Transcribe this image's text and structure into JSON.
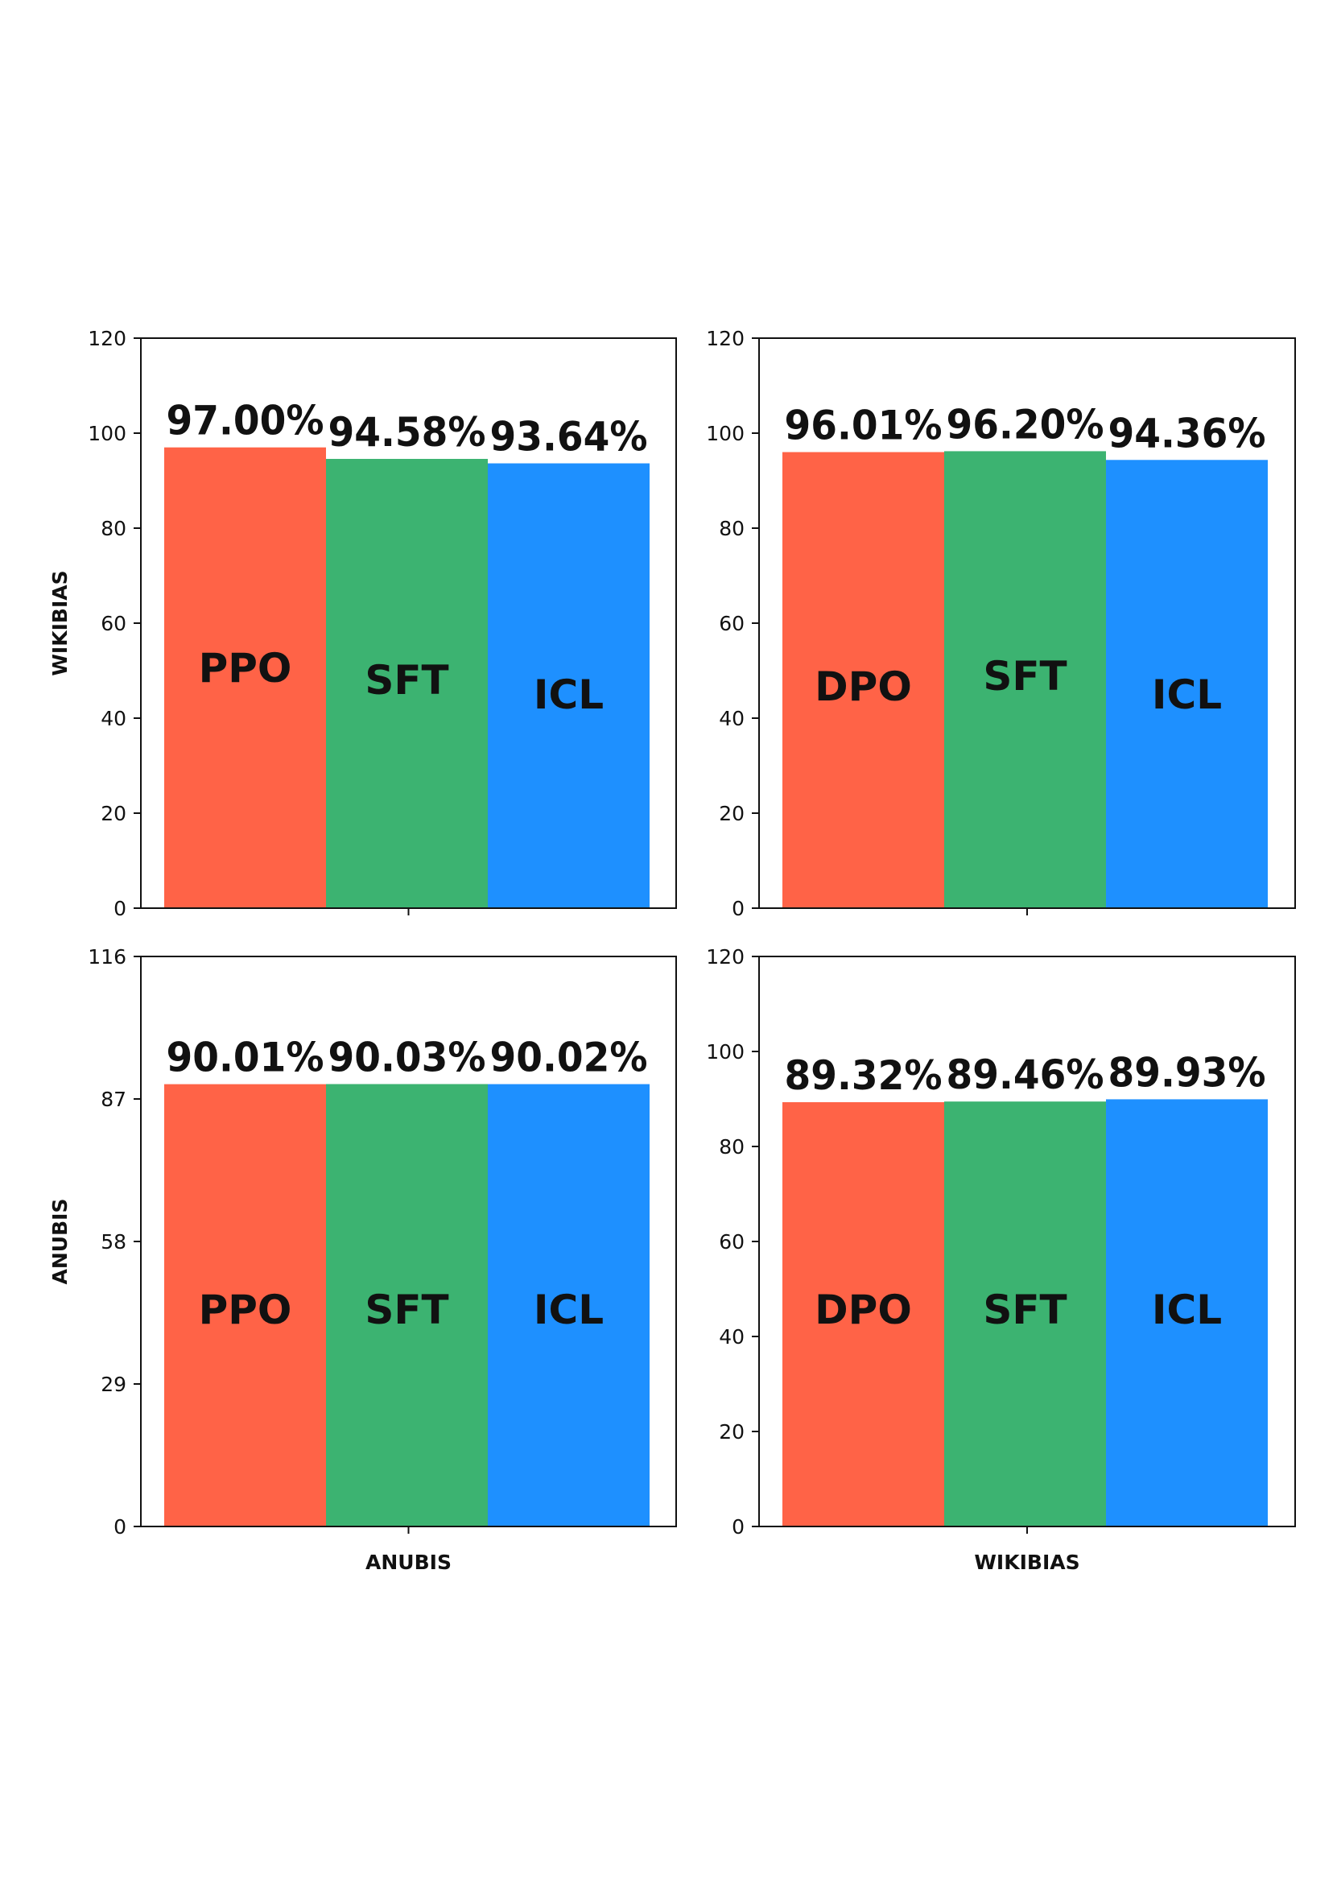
{
  "figure": {
    "row_labels": [
      "WIKIBIAS",
      "ANUBIS"
    ],
    "col_labels": [
      "ANUBIS",
      "WIKIBIAS"
    ]
  },
  "colors": {
    "PPO": "#FF6347",
    "DPO": "#FF6347",
    "SFT": "#3CB371",
    "ICL": "#1E90FF"
  },
  "chart_data": [
    {
      "type": "bar",
      "position": "top-left",
      "ylabel": "WIKIBIAS",
      "xlabel": "",
      "ylim": [
        0,
        120
      ],
      "yticks": [
        "0",
        "20",
        "40",
        "60",
        "80",
        "100",
        "120"
      ],
      "categories": [
        "PPO",
        "SFT",
        "ICL"
      ],
      "values": [
        97.0,
        94.58,
        93.64
      ],
      "value_labels": [
        "97.00%",
        "94.58%",
        "93.64%"
      ]
    },
    {
      "type": "bar",
      "position": "top-right",
      "ylabel": "",
      "xlabel": "",
      "ylim": [
        0,
        120
      ],
      "yticks": [
        "0",
        "20",
        "40",
        "60",
        "80",
        "100",
        "120"
      ],
      "categories": [
        "DPO",
        "SFT",
        "ICL"
      ],
      "values": [
        96.01,
        96.2,
        94.36
      ],
      "value_labels": [
        "96.01%",
        "96.20%",
        "94.36%"
      ]
    },
    {
      "type": "bar",
      "position": "bottom-left",
      "ylabel": "ANUBIS",
      "xlabel": "ANUBIS",
      "ylim": [
        0,
        116
      ],
      "yticks": [
        "0",
        "29",
        "58",
        "87",
        "116"
      ],
      "categories": [
        "PPO",
        "SFT",
        "ICL"
      ],
      "values": [
        90.01,
        90.03,
        90.02
      ],
      "value_labels": [
        "90.01%",
        "90.03%",
        "90.02%"
      ]
    },
    {
      "type": "bar",
      "position": "bottom-right",
      "ylabel": "",
      "xlabel": "WIKIBIAS",
      "ylim": [
        0,
        120
      ],
      "yticks": [
        "0",
        "20",
        "40",
        "60",
        "80",
        "100",
        "120"
      ],
      "categories": [
        "DPO",
        "SFT",
        "ICL"
      ],
      "values": [
        89.32,
        89.46,
        89.93
      ],
      "value_labels": [
        "89.32%",
        "89.46%",
        "89.93%"
      ]
    }
  ]
}
